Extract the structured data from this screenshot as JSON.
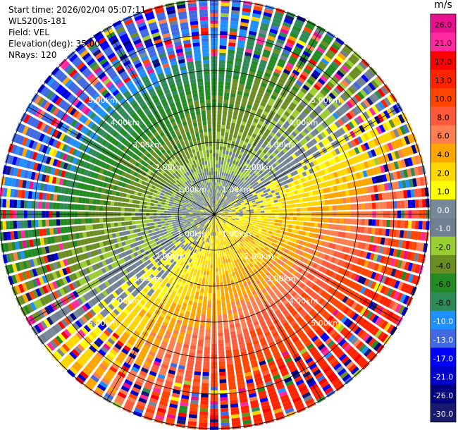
{
  "header": {
    "start_time": "Start time: 2026/02/04 05:07:11",
    "instrument": "WLS200s-181",
    "field": "Field: VEL",
    "elevation": "Elevation(deg): 35.00",
    "nrays": "NRays: 120"
  },
  "colorbar": {
    "unit": "m/s",
    "ticks": [
      "26.0",
      "21.0",
      "17.0",
      "13.0",
      "10.0",
      "8.0",
      "6.0",
      "4.0",
      "2.0",
      "1.0",
      "0.0",
      "-1.0",
      "-2.0",
      "-4.0",
      "-6.0",
      "-8.0",
      "-10.0",
      "-13.0",
      "-17.0",
      "-21.0",
      "-26.0",
      "-30.0"
    ],
    "colors": [
      "#e8108c",
      "#ff2aa0",
      "#ff0000",
      "#ff2400",
      "#ff4500",
      "#ff5a3c",
      "#ff7f50",
      "#ffa500",
      "#ffd700",
      "#ffff00",
      "#778899",
      "#708090",
      "#9acd32",
      "#6b8e23",
      "#228b22",
      "#2e8b57",
      "#1e90ff",
      "#4169e1",
      "#0000ff",
      "#0000cd",
      "#000080",
      "#191970"
    ]
  },
  "chart_data": {
    "type": "ppi",
    "field": "VEL",
    "unit": "m/s",
    "n_rays": 120,
    "elevation_deg": 35.0,
    "max_range_km": 6.0,
    "range_ring_labels": [
      "1.00km",
      "2.00km",
      "3.00km",
      "4.00km",
      "5.00km"
    ],
    "velocity_by_range_km": [
      {
        "range_km": 0.5,
        "approach_side_ms": 0.0,
        "recede_side_ms": 2.0
      },
      {
        "range_km": 1.5,
        "approach_side_ms": -2.0,
        "recede_side_ms": 4.0
      },
      {
        "range_km": 2.5,
        "approach_side_ms": -4.0,
        "recede_side_ms": 6.0
      },
      {
        "range_km": 3.5,
        "approach_side_ms": -6.0,
        "recede_side_ms": 10.0
      },
      {
        "range_km": 4.5,
        "approach_side_ms": -10.0,
        "recede_side_ms": 13.0
      },
      {
        "range_km": 5.5,
        "approach_side_ms": -13.0,
        "recede_side_ms": 17.0
      }
    ]
  }
}
